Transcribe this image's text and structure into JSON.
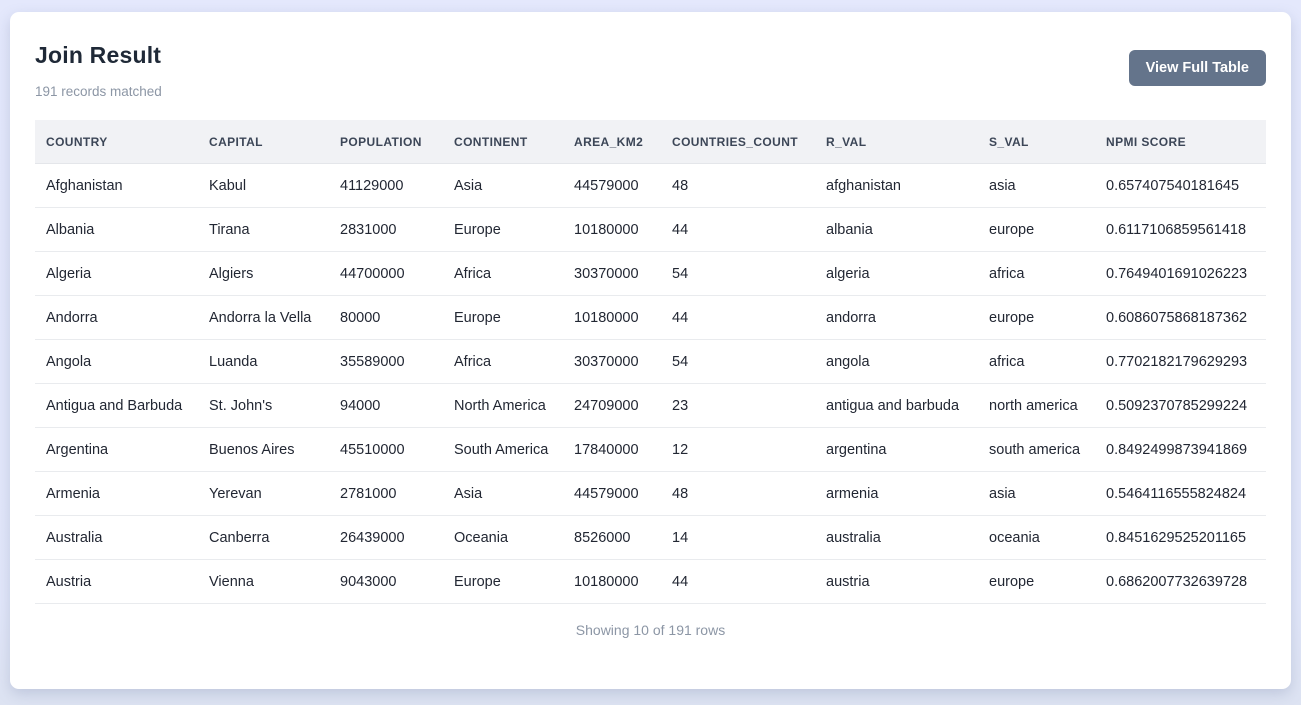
{
  "colors": {
    "page_background": "#e3e8fb",
    "card_background": "#ffffff",
    "button_background": "#64748b",
    "button_text": "#ffffff",
    "header_row_background": "#f1f2f5",
    "header_text": "#3c4657",
    "title_text": "#1f2937",
    "muted_text": "#8c96a5",
    "row_divider": "#e9ebee"
  },
  "header": {
    "title": "Join Result",
    "subtitle": "191 records matched",
    "view_full_table_label": "View Full Table"
  },
  "table": {
    "columns": [
      "COUNTRY",
      "CAPITAL",
      "POPULATION",
      "CONTINENT",
      "AREA_KM2",
      "COUNTRIES_COUNT",
      "R_VAL",
      "S_VAL",
      "NPMI SCORE"
    ],
    "rows": [
      [
        "Afghanistan",
        "Kabul",
        "41129000",
        "Asia",
        "44579000",
        "48",
        "afghanistan",
        "asia",
        "0.657407540181645"
      ],
      [
        "Albania",
        "Tirana",
        "2831000",
        "Europe",
        "10180000",
        "44",
        "albania",
        "europe",
        "0.6117106859561418"
      ],
      [
        "Algeria",
        "Algiers",
        "44700000",
        "Africa",
        "30370000",
        "54",
        "algeria",
        "africa",
        "0.7649401691026223"
      ],
      [
        "Andorra",
        "Andorra la Vella",
        "80000",
        "Europe",
        "10180000",
        "44",
        "andorra",
        "europe",
        "0.6086075868187362"
      ],
      [
        "Angola",
        "Luanda",
        "35589000",
        "Africa",
        "30370000",
        "54",
        "angola",
        "africa",
        "0.7702182179629293"
      ],
      [
        "Antigua and Barbuda",
        "St. John's",
        "94000",
        "North America",
        "24709000",
        "23",
        "antigua and barbuda",
        "north america",
        "0.5092370785299224"
      ],
      [
        "Argentina",
        "Buenos Aires",
        "45510000",
        "South America",
        "17840000",
        "12",
        "argentina",
        "south america",
        "0.8492499873941869"
      ],
      [
        "Armenia",
        "Yerevan",
        "2781000",
        "Asia",
        "44579000",
        "48",
        "armenia",
        "asia",
        "0.5464116555824824"
      ],
      [
        "Australia",
        "Canberra",
        "26439000",
        "Oceania",
        "8526000",
        "14",
        "australia",
        "oceania",
        "0.8451629525201165"
      ],
      [
        "Austria",
        "Vienna",
        "9043000",
        "Europe",
        "10180000",
        "44",
        "austria",
        "europe",
        "0.6862007732639728"
      ]
    ],
    "footer": "Showing 10 of 191 rows"
  }
}
